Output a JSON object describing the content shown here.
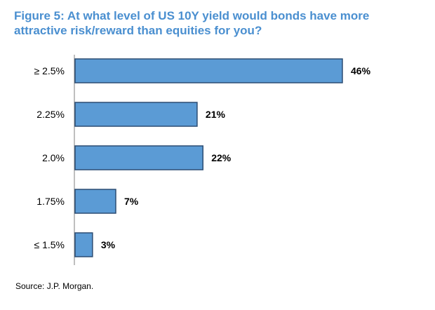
{
  "chart_data": {
    "type": "bar",
    "orientation": "horizontal",
    "title": "Figure 5: At what level of US 10Y yield would bonds have more attractive risk/reward than equities for you?",
    "categories": [
      "≥ 2.5%",
      "2.25%",
      "2.0%",
      "1.75%",
      "≤ 1.5%"
    ],
    "values": [
      46,
      21,
      22,
      7,
      3
    ],
    "value_labels": [
      "46%",
      "21%",
      "22%",
      "7%",
      "3%"
    ],
    "xlim": [
      0,
      50
    ],
    "grid": false,
    "legend": "none",
    "bar_color": "#5b9bd5",
    "bar_edge_color": "#2c4d73"
  },
  "source": "Source: J.P. Morgan."
}
